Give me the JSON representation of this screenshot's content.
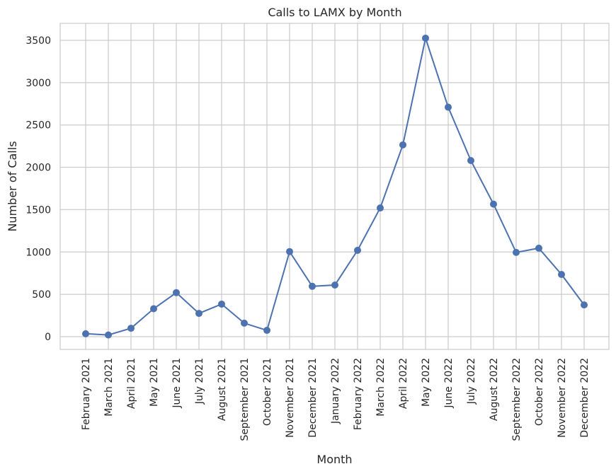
{
  "chart_data": {
    "type": "line",
    "title": "Calls to LAMX by Month",
    "xlabel": "Month",
    "ylabel": "Number of Calls",
    "ylim": [
      -150,
      3700
    ],
    "yticks": [
      0,
      500,
      1000,
      1500,
      2000,
      2500,
      3000,
      3500
    ],
    "grid": true,
    "legend": "none",
    "colors": {
      "line": "#4c72b0",
      "grid": "#cccccc",
      "axes_edge": "#cccccc",
      "text": "#262626",
      "background": "#ffffff"
    },
    "categories": [
      "February 2021",
      "March 2021",
      "April 2021",
      "May 2021",
      "June 2021",
      "July 2021",
      "August 2021",
      "September 2021",
      "October 2021",
      "November 2021",
      "December 2021",
      "January 2022",
      "February 2022",
      "March 2022",
      "April 2022",
      "May 2022",
      "June 2022",
      "July 2022",
      "August 2022",
      "September 2022",
      "October 2022",
      "November 2022",
      "December 2022"
    ],
    "series": [
      {
        "marker": "circle",
        "values": [
          35,
          20,
          100,
          330,
          520,
          275,
          385,
          160,
          75,
          1005,
          595,
          610,
          1020,
          1520,
          2265,
          3525,
          2710,
          2080,
          1565,
          995,
          1045,
          735,
          375
        ]
      }
    ]
  }
}
